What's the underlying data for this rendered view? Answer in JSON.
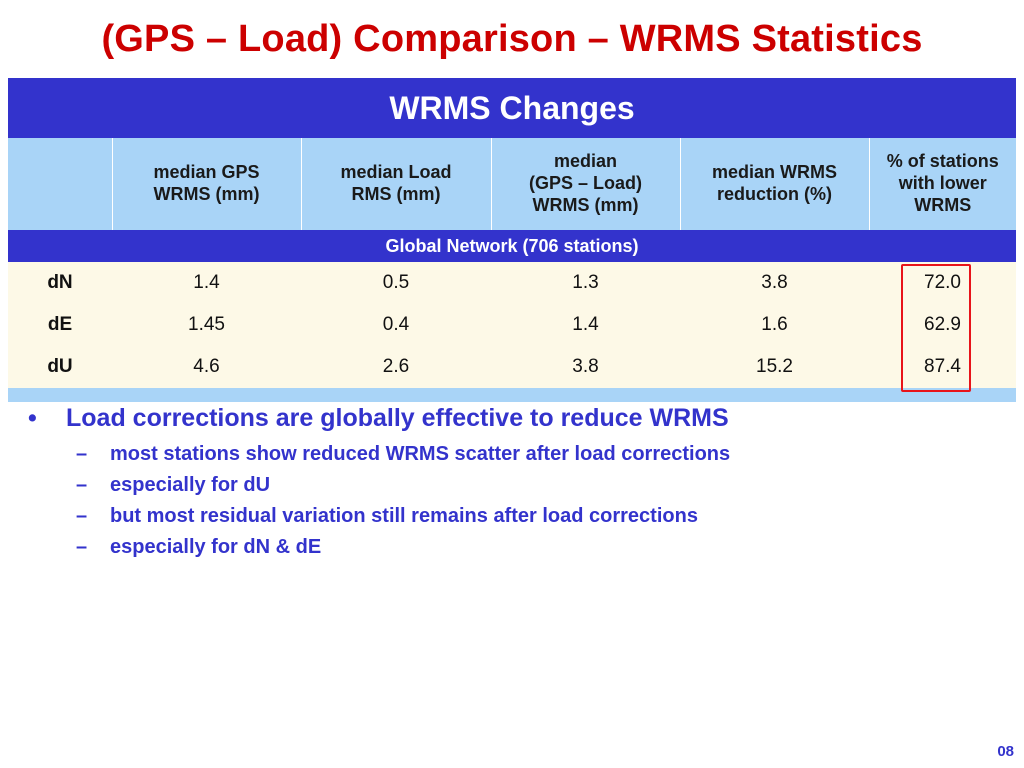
{
  "slide": {
    "title": "(GPS – Load) Comparison – WRMS Statistics",
    "page_number": "08"
  },
  "table": {
    "header": "WRMS Changes",
    "columns": [
      {
        "line1": "",
        "line2": "",
        "line3": ""
      },
      {
        "line1": "median GPS",
        "line2": "WRMS (mm)",
        "line3": ""
      },
      {
        "line1": "median Load",
        "line2": "RMS (mm)",
        "line3": ""
      },
      {
        "line1": "median",
        "line2": "(GPS – Load)",
        "line3": "WRMS (mm)"
      },
      {
        "line1": "median WRMS",
        "line2": "reduction (%)",
        "line3": ""
      },
      {
        "line1": "% of stations",
        "line2": "with lower",
        "line3": "WRMS"
      }
    ],
    "network_label": "Global Network (706 stations)",
    "rows": [
      {
        "label": "dN",
        "gps": "1.4",
        "load": "0.5",
        "diff": "1.3",
        "reduction": "3.8",
        "pct": "72.0"
      },
      {
        "label": "dE",
        "gps": "1.45",
        "load": "0.4",
        "diff": "1.4",
        "reduction": "1.6",
        "pct": "62.9"
      },
      {
        "label": "dU",
        "gps": "4.6",
        "load": "2.6",
        "diff": "3.8",
        "reduction": "15.2",
        "pct": "87.4"
      }
    ]
  },
  "bullets": {
    "main": "Load corrections are globally effective to reduce WRMS",
    "bullet_symbol": "•",
    "dash_symbol": "–",
    "subs": [
      "most stations show reduced WRMS scatter after load corrections",
      "especially for dU",
      "but most residual variation still remains after load corrections",
      "especially for dN & dE"
    ]
  },
  "colors": {
    "title": "#cc0000",
    "header_bg": "#3333cc",
    "column_header_bg": "#a9d4f7",
    "data_bg": "#fdf9e7",
    "highlight_box": "#e8141a",
    "bullet_text": "#3333cc"
  }
}
